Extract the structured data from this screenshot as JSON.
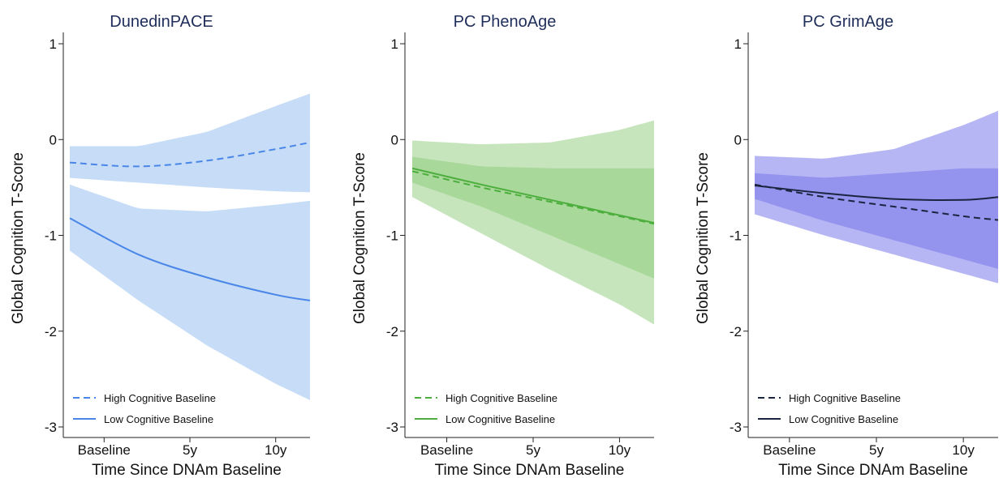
{
  "chart_data": [
    {
      "type": "line",
      "title": "DunedinPACE",
      "xlabel": "Time Since DNAm Baseline",
      "ylabel": "Global Cognition T-Score",
      "x_tick_labels": [
        "Baseline",
        "5y",
        "10y"
      ],
      "x_tick_values": [
        0,
        5,
        10
      ],
      "xlim": [
        -3,
        12
      ],
      "y_tick_labels": [
        "1",
        "0",
        "-1",
        "-2",
        "-3"
      ],
      "y_tick_values": [
        1,
        0,
        -1,
        -2,
        -3
      ],
      "ylim": [
        -3.1,
        1.1
      ],
      "legend": "bottom-left",
      "grid": false,
      "colors": {
        "band": "#c6dcf7",
        "line": "#4a86e8"
      },
      "x": [
        -2,
        2,
        6,
        10,
        12
      ],
      "series": [
        {
          "name": "High Cognitive Baseline",
          "dash": "dashed",
          "values": [
            -0.24,
            -0.28,
            -0.22,
            -0.1,
            -0.03
          ],
          "ci_lower": [
            -0.4,
            -0.45,
            -0.5,
            -0.54,
            -0.55
          ],
          "ci_upper": [
            -0.07,
            -0.07,
            0.08,
            0.35,
            0.48
          ]
        },
        {
          "name": "Low Cognitive Baseline",
          "dash": "solid",
          "values": [
            -0.82,
            -1.2,
            -1.44,
            -1.62,
            -1.68
          ],
          "ci_lower": [
            -1.16,
            -1.68,
            -2.15,
            -2.55,
            -2.72
          ],
          "ci_upper": [
            -0.47,
            -0.72,
            -0.75,
            -0.68,
            -0.64
          ]
        }
      ]
    },
    {
      "type": "line",
      "title": "PC PhenoAge",
      "xlabel": "Time Since DNAm Baseline",
      "ylabel": "Global Cognition T-Score",
      "x_tick_labels": [
        "Baseline",
        "5y",
        "10y"
      ],
      "x_tick_values": [
        0,
        5,
        10
      ],
      "xlim": [
        -3,
        12
      ],
      "y_tick_labels": [
        "1",
        "0",
        "-1",
        "-2",
        "-3"
      ],
      "y_tick_values": [
        1,
        0,
        -1,
        -2,
        -3
      ],
      "ylim": [
        -3.1,
        1.1
      ],
      "legend": "bottom-left",
      "grid": false,
      "colors": {
        "band": "#c7e5bd",
        "band_overlap": "#a9d89b",
        "line": "#4cae3c"
      },
      "x": [
        -2,
        2,
        6,
        10,
        12
      ],
      "series": [
        {
          "name": "High Cognitive Baseline",
          "dash": "dashed",
          "values": [
            -0.33,
            -0.5,
            -0.65,
            -0.8,
            -0.88
          ],
          "ci_lower": [
            -0.6,
            -0.98,
            -1.36,
            -1.72,
            -1.93
          ],
          "ci_upper": [
            -0.01,
            -0.05,
            -0.03,
            0.1,
            0.2
          ]
        },
        {
          "name": "Low Cognitive Baseline",
          "dash": "solid",
          "values": [
            -0.3,
            -0.47,
            -0.63,
            -0.79,
            -0.87
          ],
          "ci_lower": [
            -0.45,
            -0.7,
            -1.0,
            -1.3,
            -1.45
          ],
          "ci_upper": [
            -0.18,
            -0.28,
            -0.3,
            -0.3,
            -0.3
          ]
        }
      ]
    },
    {
      "type": "line",
      "title": "PC GrimAge",
      "xlabel": "Time Since DNAm Baseline",
      "ylabel": "Global Cognition T-Score",
      "x_tick_labels": [
        "Baseline",
        "5y",
        "10y"
      ],
      "x_tick_values": [
        0,
        5,
        10
      ],
      "xlim": [
        -3,
        12
      ],
      "y_tick_labels": [
        "1",
        "0",
        "-1",
        "-2",
        "-3"
      ],
      "y_tick_values": [
        1,
        0,
        -1,
        -2,
        -3
      ],
      "ylim": [
        -3.1,
        1.1
      ],
      "legend": "bottom-left",
      "grid": false,
      "colors": {
        "band": "#b7b6f4",
        "band_overlap": "#9493ee",
        "line": "#1c2540"
      },
      "x": [
        -2,
        2,
        6,
        10,
        12
      ],
      "series": [
        {
          "name": "High Cognitive Baseline",
          "dash": "dashed",
          "values": [
            -0.47,
            -0.6,
            -0.7,
            -0.8,
            -0.84
          ],
          "ci_lower": [
            -0.78,
            -1.0,
            -1.2,
            -1.4,
            -1.5
          ],
          "ci_upper": [
            -0.17,
            -0.2,
            -0.1,
            0.15,
            0.3
          ]
        },
        {
          "name": "Low Cognitive Baseline",
          "dash": "solid",
          "values": [
            -0.48,
            -0.56,
            -0.62,
            -0.63,
            -0.6
          ],
          "ci_lower": [
            -0.62,
            -0.85,
            -1.05,
            -1.25,
            -1.35
          ],
          "ci_upper": [
            -0.35,
            -0.4,
            -0.35,
            -0.3,
            -0.3
          ]
        }
      ]
    }
  ]
}
